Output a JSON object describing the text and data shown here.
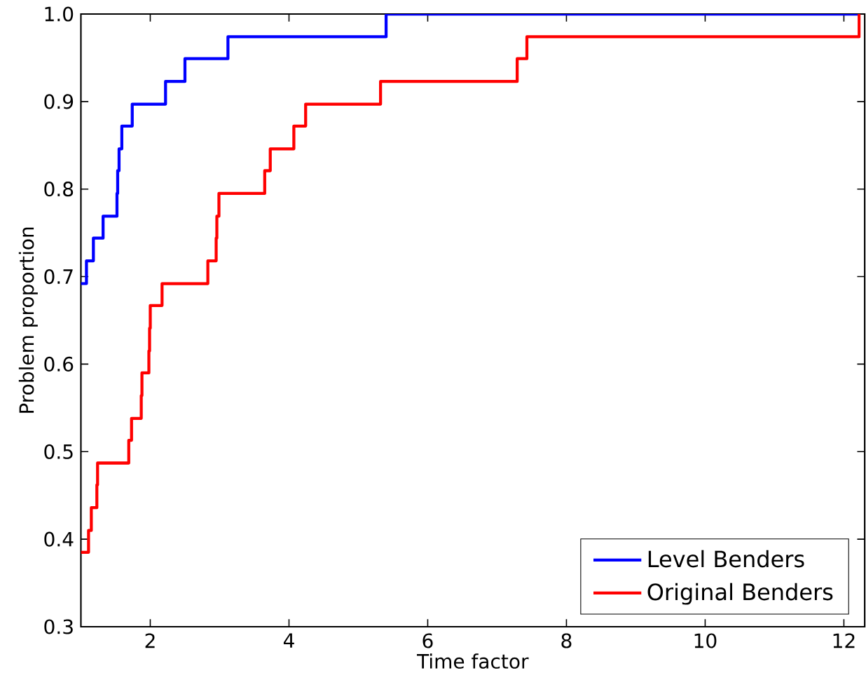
{
  "chart_data": {
    "type": "step",
    "xlabel": "Time factor",
    "ylabel": "Problem proportion",
    "xlim": [
      1,
      12.3
    ],
    "ylim": [
      0.3,
      1.0
    ],
    "xticks": [
      2,
      4,
      6,
      8,
      10,
      12
    ],
    "yticks": [
      {
        "value": 0.3,
        "label": "0.3"
      },
      {
        "value": 0.4,
        "label": "0.4"
      },
      {
        "value": 0.5,
        "label": "0.5"
      },
      {
        "value": 0.6,
        "label": "0.6"
      },
      {
        "value": 0.7,
        "label": "0.7"
      },
      {
        "value": 0.8,
        "label": "0.8"
      },
      {
        "value": 0.9,
        "label": "0.9"
      },
      {
        "value": 1.0,
        "label": "1.0"
      }
    ],
    "grid": false,
    "legend": "bottom right",
    "marker": "none",
    "line_style": "solid",
    "series": [
      {
        "name": "Level Benders",
        "color": "#0000ff",
        "x": [
          1,
          1.08,
          1.18,
          1.32,
          1.52,
          1.53,
          1.55,
          1.59,
          1.74,
          2.22,
          2.5,
          3.12,
          5.4,
          12.22
        ],
        "values": [
          0.692,
          0.718,
          0.744,
          0.769,
          0.795,
          0.821,
          0.846,
          0.872,
          0.897,
          0.923,
          0.949,
          0.974,
          1.0,
          1.0
        ]
      },
      {
        "name": "Original Benders",
        "color": "#ff0000",
        "x": [
          1,
          1.11,
          1.15,
          1.23,
          1.24,
          1.69,
          1.73,
          1.87,
          1.88,
          1.98,
          1.99,
          2.0,
          2.17,
          2.83,
          2.95,
          2.96,
          2.99,
          3.65,
          3.73,
          4.07,
          4.24,
          5.32,
          7.29,
          7.43,
          12.22
        ],
        "values": [
          0.385,
          0.41,
          0.436,
          0.462,
          0.487,
          0.513,
          0.538,
          0.564,
          0.59,
          0.615,
          0.641,
          0.667,
          0.692,
          0.718,
          0.744,
          0.769,
          0.795,
          0.821,
          0.846,
          0.872,
          0.897,
          0.923,
          0.949,
          0.974,
          1.0
        ]
      }
    ]
  }
}
